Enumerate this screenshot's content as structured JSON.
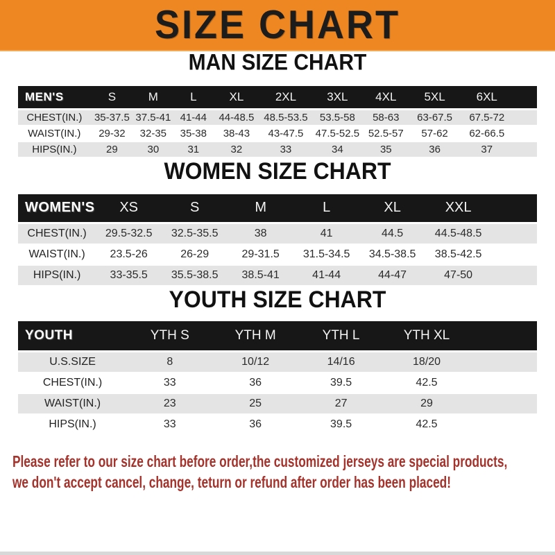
{
  "banner": {
    "title": "SIZE CHART"
  },
  "sections": [
    {
      "heading": "MAN SIZE CHART",
      "table": {
        "label": "MEN'S",
        "columns": [
          "S",
          "M",
          "L",
          "XL",
          "2XL",
          "3XL",
          "4XL",
          "5XL",
          "6XL"
        ],
        "rows": [
          {
            "label": "CHEST(IN.)",
            "values": [
              "35-37.5",
              "37.5-41",
              "41-44",
              "44-48.5",
              "48.5-53.5",
              "53.5-58",
              "58-63",
              "63-67.5",
              "67.5-72"
            ]
          },
          {
            "label": "WAIST(IN.)",
            "values": [
              "29-32",
              "32-35",
              "35-38",
              "38-43",
              "43-47.5",
              "47.5-52.5",
              "52.5-57",
              "57-62",
              "62-66.5"
            ]
          },
          {
            "label": "HIPS(IN.)",
            "values": [
              "29",
              "30",
              "31",
              "32",
              "33",
              "34",
              "35",
              "36",
              "37"
            ]
          }
        ]
      }
    },
    {
      "heading": "WOMEN SIZE CHART",
      "table": {
        "label": "WOMEN'S",
        "columns": [
          "XS",
          "S",
          "M",
          "L",
          "XL",
          "XXL"
        ],
        "rows": [
          {
            "label": "CHEST(IN.)",
            "values": [
              "29.5-32.5",
              "32.5-35.5",
              "38",
              "41",
              "44.5",
              "44.5-48.5"
            ]
          },
          {
            "label": "WAIST(IN.)",
            "values": [
              "23.5-26",
              "26-29",
              "29-31.5",
              "31.5-34.5",
              "34.5-38.5",
              "38.5-42.5"
            ]
          },
          {
            "label": "HIPS(IN.)",
            "values": [
              "33-35.5",
              "35.5-38.5",
              "38.5-41",
              "41-44",
              "44-47",
              "47-50"
            ]
          }
        ]
      }
    },
    {
      "heading": "YOUTH SIZE CHART",
      "table": {
        "label": "YOUTH",
        "columns": [
          "YTH S",
          "YTH M",
          "YTH L",
          "YTH XL"
        ],
        "rows": [
          {
            "label": "U.S.SIZE",
            "values": [
              "8",
              "10/12",
              "14/16",
              "18/20"
            ]
          },
          {
            "label": "CHEST(IN.)",
            "values": [
              "33",
              "36",
              "39.5",
              "42.5"
            ]
          },
          {
            "label": "WAIST(IN.)",
            "values": [
              "23",
              "25",
              "27",
              "29"
            ]
          },
          {
            "label": "HIPS(IN.)",
            "values": [
              "33",
              "36",
              "39.5",
              "42.5"
            ]
          }
        ]
      }
    }
  ],
  "footer_note": {
    "lines": [
      "Please refer to our size chart before order,the customized jerseys are special products,",
      "we don't accept cancel, change, teturn or refund after order has been placed!"
    ]
  },
  "colors": {
    "banner_bg": "#ee8722",
    "banner_text": "#1c1c1c",
    "header_bar": "#171717",
    "row_alt": "#e4e4e4",
    "note_red": "#a5322b",
    "bottom_strip": "#d8d8d8"
  }
}
